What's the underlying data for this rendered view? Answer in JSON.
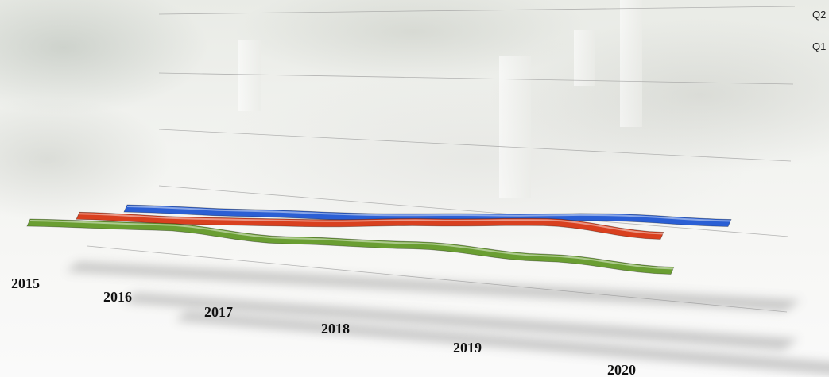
{
  "chart_data": {
    "type": "line",
    "style": "3d-ribbon",
    "title": "",
    "xlabel": "",
    "ylabel": "",
    "categories": [
      "2015",
      "2016",
      "2017",
      "2018",
      "2019",
      "2020"
    ],
    "grid": true,
    "legend_position": "top-right",
    "legend": [
      "Q2",
      "Q1"
    ],
    "series": [
      {
        "color": "#6a9e32",
        "values": [
          0.8,
          0.5,
          -1.4,
          -1.9,
          -3.6,
          -5.4
        ]
      },
      {
        "name": "Q1",
        "color": "#d9401f",
        "values": [
          0.9,
          0.4,
          0.4,
          0.9,
          1.3,
          -0.6
        ]
      },
      {
        "name": "Q2",
        "color": "#2b5fd4",
        "values": [
          1.2,
          0.8,
          0.5,
          0.8,
          1.2,
          0.6
        ]
      }
    ]
  }
}
